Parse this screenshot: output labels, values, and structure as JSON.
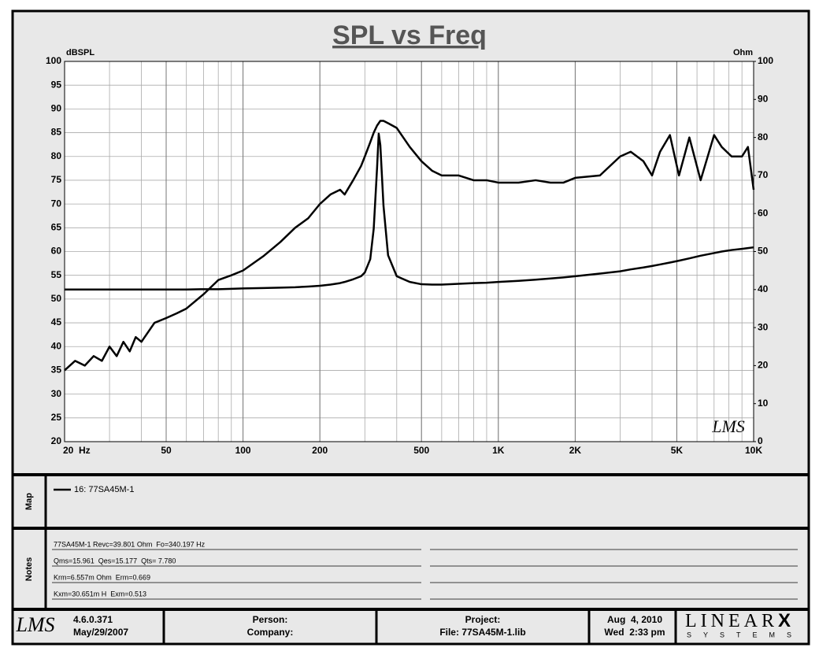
{
  "chart_data": {
    "type": "line",
    "title": "SPL vs Freq",
    "ylabel": "dBSPL",
    "y2label": "Ohm",
    "annotation": "LMS",
    "log_x": true,
    "grid": true,
    "x": [
      20,
      22,
      24,
      26,
      28,
      30,
      32,
      34,
      36,
      38,
      40,
      45,
      50,
      55,
      60,
      70,
      80,
      90,
      100,
      120,
      140,
      160,
      180,
      200,
      220,
      240,
      250,
      270,
      290,
      300,
      315,
      325,
      335,
      340,
      345,
      355,
      370,
      400,
      450,
      500,
      550,
      600,
      700,
      800,
      900,
      1000,
      1200,
      1400,
      1600,
      1800,
      2000,
      2500,
      3000,
      3300,
      3700,
      4000,
      4300,
      4700,
      5100,
      5600,
      6200,
      7000,
      7500,
      8200,
      9000,
      9500,
      10000
    ],
    "series": [
      {
        "name": "16: 77SA45M-1",
        "color": "#000000",
        "values": [
          35,
          37,
          36,
          38,
          37,
          40,
          38,
          41,
          39,
          42,
          41,
          45,
          46,
          47,
          48,
          51,
          54,
          55,
          56,
          59,
          62,
          65,
          67,
          70,
          72,
          73,
          72,
          75,
          78,
          80,
          83,
          85,
          86.5,
          87,
          87.5,
          87.5,
          87,
          86,
          82,
          79,
          77,
          76,
          76,
          75,
          75,
          74.5,
          74.5,
          75,
          74.5,
          74.5,
          75.5,
          76,
          80,
          81,
          79,
          76,
          81,
          84.5,
          76,
          84,
          75,
          84.5,
          82,
          80,
          80,
          82,
          73
        ]
      },
      {
        "color": "#000000",
        "axis": "y2",
        "values": [
          40,
          40,
          40,
          40,
          40,
          40,
          40,
          40,
          40,
          40,
          40,
          40,
          40,
          40,
          40,
          40.1,
          40.1,
          40.2,
          40.3,
          40.4,
          40.5,
          40.6,
          40.8,
          41,
          41.3,
          41.7,
          42,
          42.7,
          43.5,
          44.5,
          48,
          56,
          72,
          81,
          78,
          62,
          49,
          43.5,
          42,
          41.4,
          41.3,
          41.3,
          41.5,
          41.7,
          41.8,
          42,
          42.3,
          42.6,
          42.9,
          43.2,
          43.5,
          44.2,
          44.8,
          45.3,
          45.8,
          46.2,
          46.6,
          47.1,
          47.6,
          48.2,
          48.9,
          49.6,
          50,
          50.4,
          50.7,
          50.9,
          51.1
        ]
      }
    ],
    "xlim": [
      20,
      10000
    ],
    "xticks": [
      {
        "value": 20,
        "label": "20  Hz"
      },
      50,
      100,
      200,
      500,
      {
        "value": 1000,
        "label": "1K"
      },
      {
        "value": 2000,
        "label": "2K"
      },
      {
        "value": 5000,
        "label": "5K"
      },
      {
        "value": 10000,
        "label": "10K"
      }
    ],
    "ylim": [
      20,
      100
    ],
    "yticks": [
      20,
      25,
      30,
      35,
      40,
      45,
      50,
      55,
      60,
      65,
      70,
      75,
      80,
      85,
      90,
      95,
      100
    ],
    "y2lim": [
      0,
      100
    ],
    "y2ticks": [
      0,
      10,
      20,
      30,
      40,
      50,
      60,
      70,
      80,
      90,
      100
    ]
  },
  "map": {
    "label": "Map"
  },
  "notes": {
    "label": "Notes",
    "lines": [
      "77SA45M-1 Revc=39.801 Ohm  Fo=340.197 Hz",
      "Qms=15.961  Qes=15.177  Qts= 7.780",
      "Krm=6.557m Ohm  Erm=0.669",
      "Kxm=30.651m H  Exm=0.513"
    ]
  },
  "footer": {
    "logo": "LMS",
    "version": "4.6.0.371",
    "date": "May/29/2007",
    "person": "Person:",
    "company": "Company:",
    "project": "Project:",
    "file": "File: 77SA45M-1.lib",
    "print_date": "Aug  4, 2010",
    "print_time": "Wed  2:33 pm",
    "brand": "LINEAR",
    "brand_x": "X",
    "brand_sub": "SYSTEMS"
  }
}
